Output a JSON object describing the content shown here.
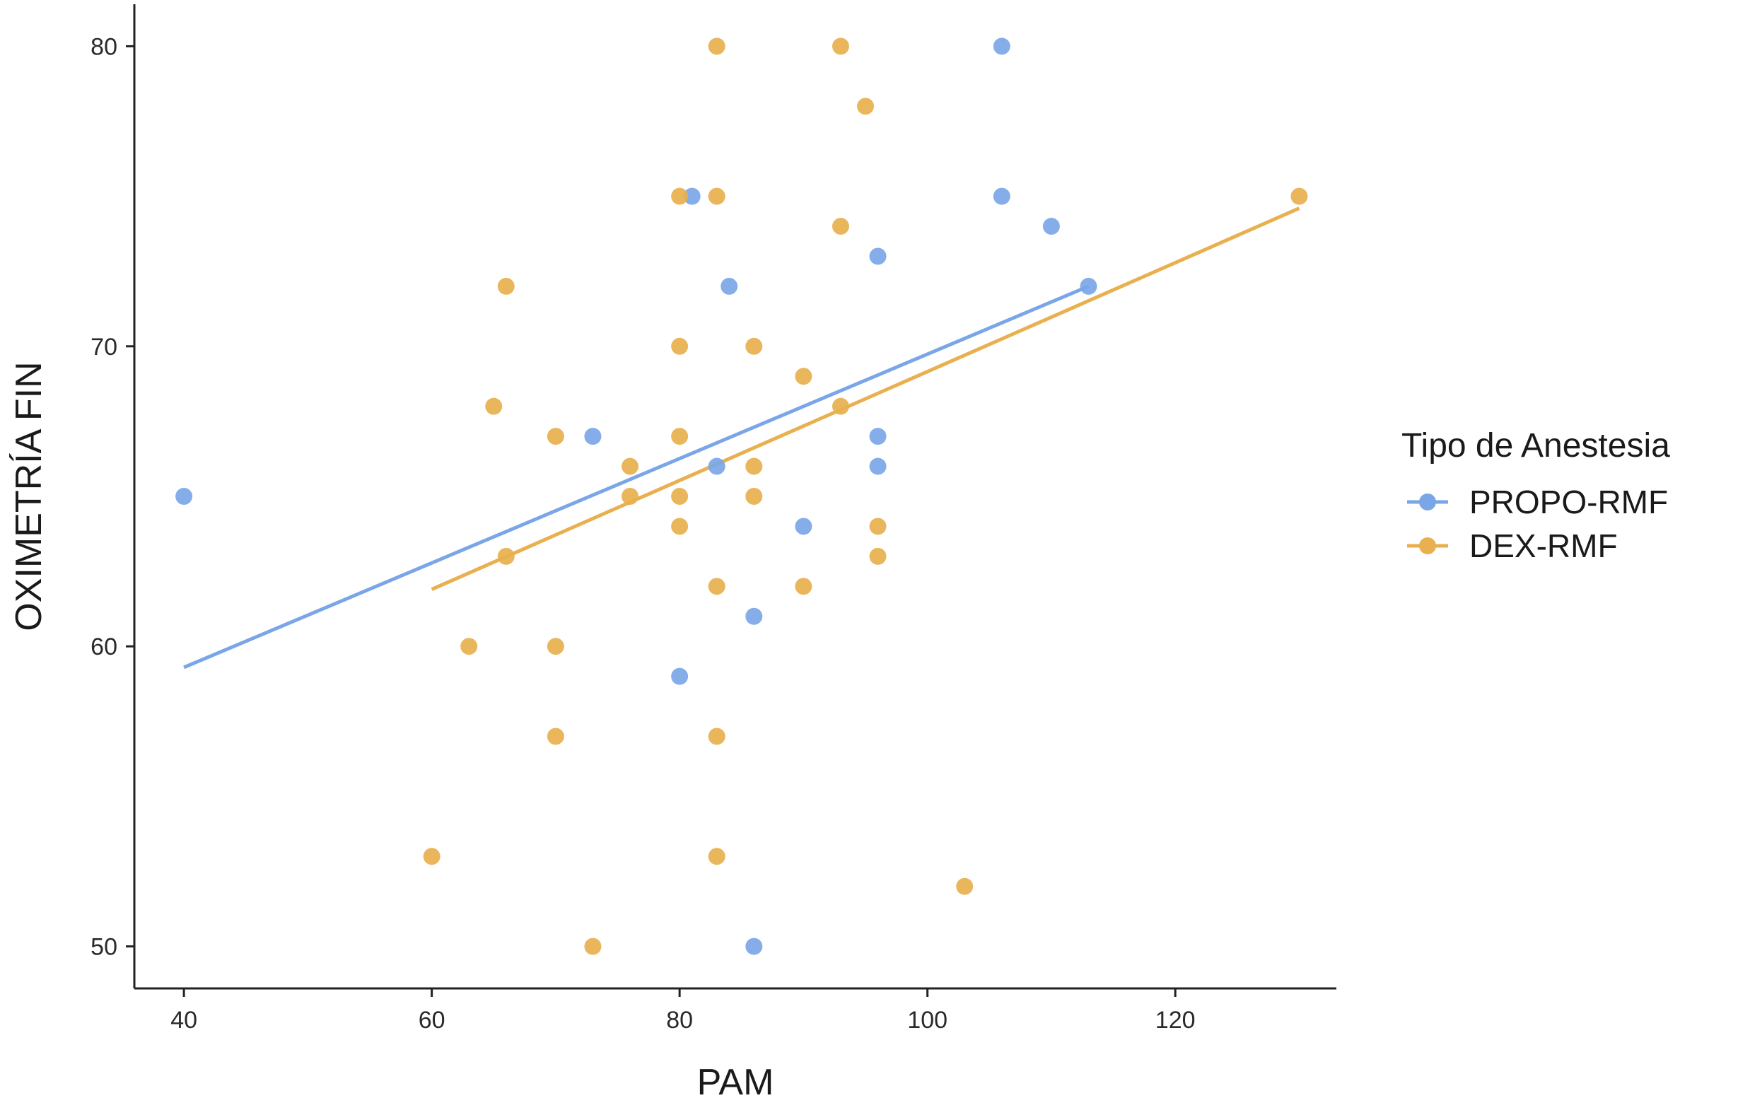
{
  "chart_data": {
    "type": "scatter",
    "xlabel": "PAM",
    "ylabel": "OXIMETRÍA FIN",
    "xlim": [
      36,
      133
    ],
    "ylim": [
      48.6,
      81.4
    ],
    "xticks": [
      40,
      60,
      80,
      100,
      120
    ],
    "yticks": [
      50,
      60,
      70,
      80
    ],
    "grid": false,
    "legend": {
      "title": "Tipo de Anestesia",
      "position": "right"
    },
    "series": [
      {
        "name": "PROPO-RMF",
        "color": "#7aa6e8",
        "points": [
          {
            "x": 40,
            "y": 65
          },
          {
            "x": 73,
            "y": 67
          },
          {
            "x": 80,
            "y": 59
          },
          {
            "x": 81,
            "y": 75
          },
          {
            "x": 83,
            "y": 66
          },
          {
            "x": 84,
            "y": 72
          },
          {
            "x": 86,
            "y": 61
          },
          {
            "x": 86,
            "y": 50
          },
          {
            "x": 90,
            "y": 64
          },
          {
            "x": 96,
            "y": 73
          },
          {
            "x": 96,
            "y": 67
          },
          {
            "x": 96,
            "y": 66
          },
          {
            "x": 106,
            "y": 80
          },
          {
            "x": 106,
            "y": 75
          },
          {
            "x": 110,
            "y": 74
          },
          {
            "x": 113,
            "y": 72
          }
        ],
        "fit_line": {
          "x": [
            40,
            113
          ],
          "y": [
            59.3,
            72.0
          ]
        }
      },
      {
        "name": "DEX-RMF",
        "color": "#e8b04e",
        "points": [
          {
            "x": 60,
            "y": 53
          },
          {
            "x": 63,
            "y": 60
          },
          {
            "x": 65,
            "y": 68
          },
          {
            "x": 66,
            "y": 72
          },
          {
            "x": 66,
            "y": 63
          },
          {
            "x": 70,
            "y": 67
          },
          {
            "x": 70,
            "y": 60
          },
          {
            "x": 70,
            "y": 57
          },
          {
            "x": 73,
            "y": 50
          },
          {
            "x": 76,
            "y": 66
          },
          {
            "x": 76,
            "y": 65
          },
          {
            "x": 80,
            "y": 75
          },
          {
            "x": 80,
            "y": 70
          },
          {
            "x": 80,
            "y": 67
          },
          {
            "x": 80,
            "y": 65
          },
          {
            "x": 80,
            "y": 64
          },
          {
            "x": 83,
            "y": 80
          },
          {
            "x": 83,
            "y": 75
          },
          {
            "x": 83,
            "y": 62
          },
          {
            "x": 83,
            "y": 57
          },
          {
            "x": 83,
            "y": 53
          },
          {
            "x": 86,
            "y": 70
          },
          {
            "x": 86,
            "y": 66
          },
          {
            "x": 86,
            "y": 65
          },
          {
            "x": 90,
            "y": 69
          },
          {
            "x": 90,
            "y": 62
          },
          {
            "x": 93,
            "y": 80
          },
          {
            "x": 93,
            "y": 74
          },
          {
            "x": 93,
            "y": 68
          },
          {
            "x": 95,
            "y": 78
          },
          {
            "x": 96,
            "y": 64
          },
          {
            "x": 96,
            "y": 63
          },
          {
            "x": 103,
            "y": 52
          },
          {
            "x": 130,
            "y": 75
          }
        ],
        "fit_line": {
          "x": [
            60,
            130
          ],
          "y": [
            61.9,
            74.6
          ]
        }
      }
    ]
  }
}
